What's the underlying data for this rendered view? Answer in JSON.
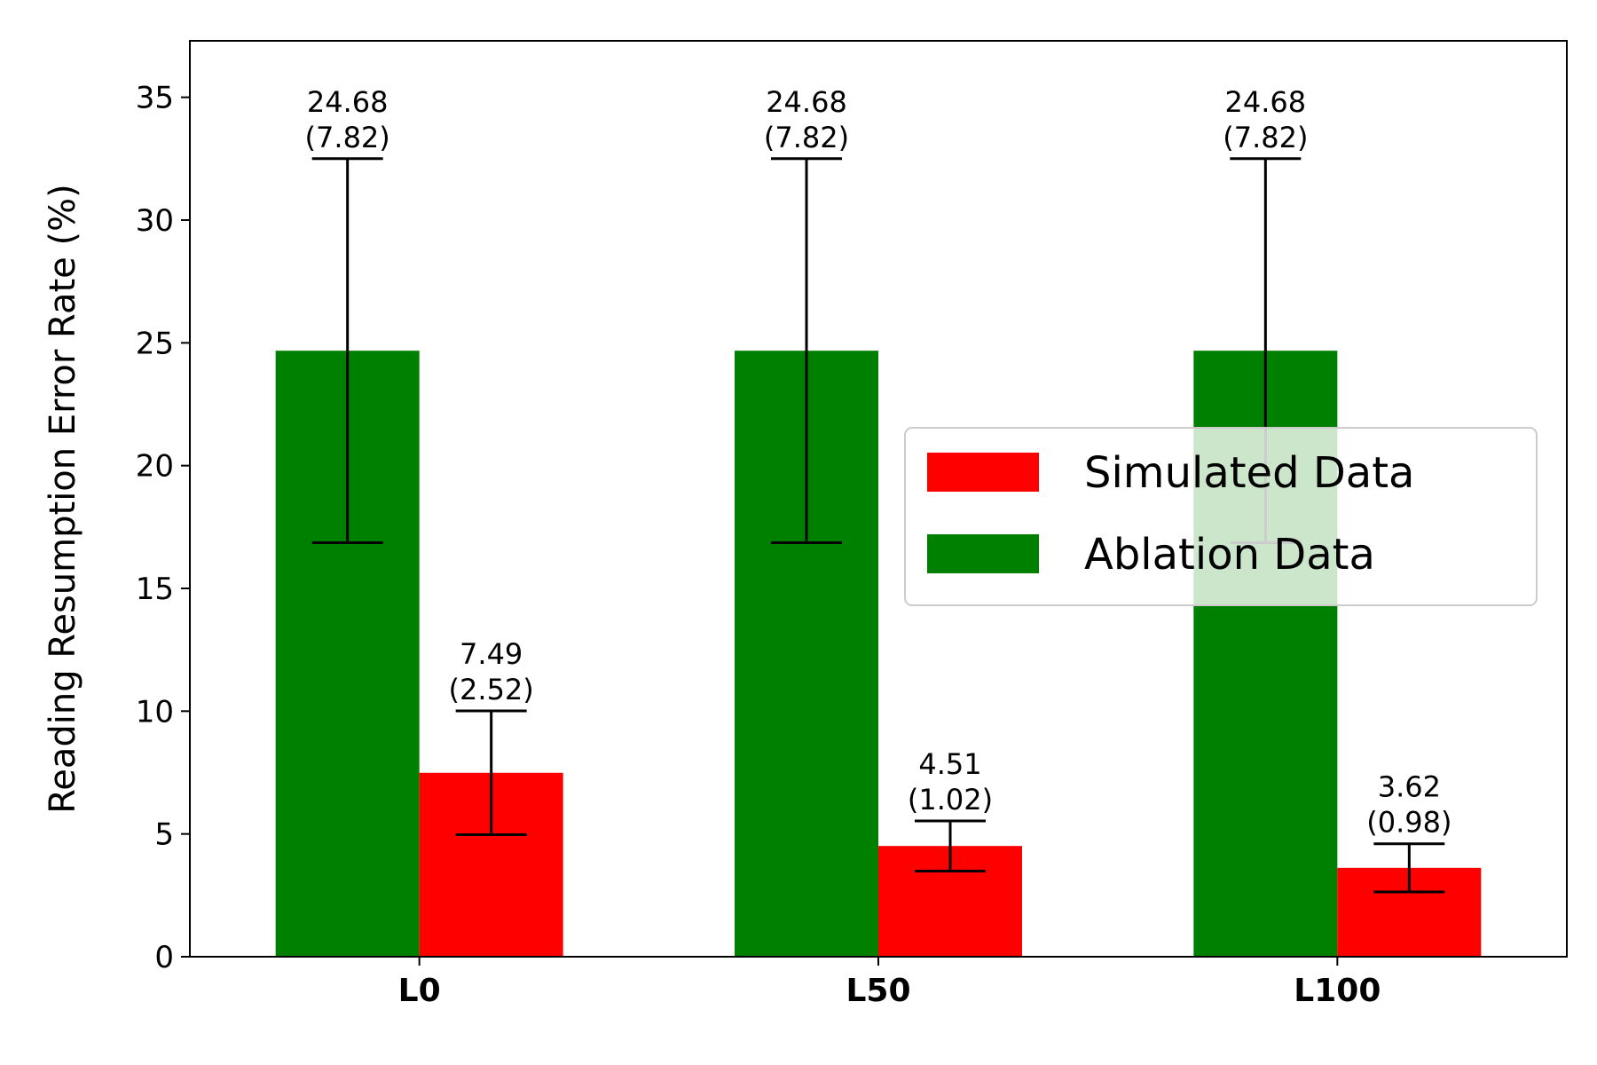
{
  "chart_data": {
    "type": "bar",
    "categories": [
      "L0",
      "L50",
      "L100"
    ],
    "series": [
      {
        "name": "Ablation Data",
        "color": "#008000",
        "values": [
          24.68,
          24.68,
          24.68
        ],
        "errors": [
          7.82,
          7.82,
          7.82
        ],
        "labels": [
          [
            "24.68",
            "(7.82)"
          ],
          [
            "24.68",
            "(7.82)"
          ],
          [
            "24.68",
            "(7.82)"
          ]
        ]
      },
      {
        "name": "Simulated Data",
        "color": "#ff0000",
        "values": [
          7.49,
          4.51,
          3.62
        ],
        "errors": [
          2.52,
          1.02,
          0.98
        ],
        "labels": [
          [
            "7.49",
            "(2.52)"
          ],
          [
            "4.51",
            "(1.02)"
          ],
          [
            "3.62",
            "(0.98)"
          ]
        ]
      }
    ],
    "title": "",
    "xlabel": "",
    "ylabel": "Reading Resumption Error Rate (%)",
    "ylim": [
      0,
      37.3
    ],
    "yticks": [
      0,
      5,
      10,
      15,
      20,
      25,
      30,
      35
    ],
    "grid": false,
    "legend": {
      "position": "right",
      "entries": [
        "Simulated Data",
        "Ablation Data"
      ]
    }
  }
}
